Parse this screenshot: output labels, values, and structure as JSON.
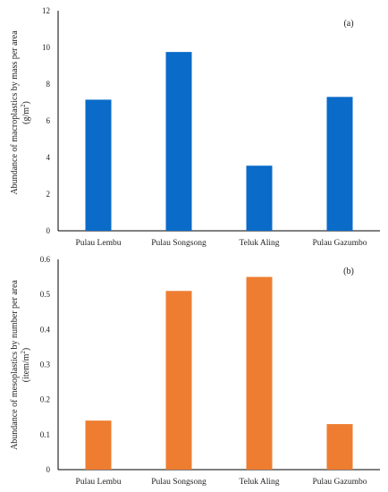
{
  "chart_data": [
    {
      "type": "bar",
      "panel_label": "(a)",
      "categories": [
        "Pulau Lembu",
        "Pulau Songsong",
        "Teluk Aling",
        "Pulau Gazumbo"
      ],
      "values": [
        7.15,
        9.75,
        3.55,
        7.3
      ],
      "ylabel_line1": "Abundance of macroplastics by mass per area",
      "ylabel_line2_pre": "(g/m",
      "ylabel_line2_sup": "2",
      "ylabel_line2_post": ")",
      "ylim": [
        0,
        12
      ],
      "yticks": [
        "0",
        "2",
        "4",
        "6",
        "8",
        "10",
        "12"
      ],
      "ytick_values": [
        0,
        2,
        4,
        6,
        8,
        10,
        12
      ],
      "grid": false,
      "color": "#0a6bc8"
    },
    {
      "type": "bar",
      "panel_label": "(b)",
      "categories": [
        "Pulau Lembu",
        "Pulau Songsong",
        "Teluk Aling",
        "Pulau Gazumbo"
      ],
      "values": [
        0.14,
        0.51,
        0.55,
        0.13
      ],
      "ylabel_line1": "Abundance of mesoplastics by number per area",
      "ylabel_line2_pre": "(item/m",
      "ylabel_line2_sup": "2",
      "ylabel_line2_post": ")",
      "ylim": [
        0,
        0.6
      ],
      "yticks": [
        "0",
        "0.1",
        "0.2",
        "0.3",
        "0.4",
        "0.5",
        "0.6"
      ],
      "ytick_values": [
        0,
        0.1,
        0.2,
        0.3,
        0.4,
        0.5,
        0.6
      ],
      "grid": false,
      "color": "#ee7d31"
    }
  ]
}
